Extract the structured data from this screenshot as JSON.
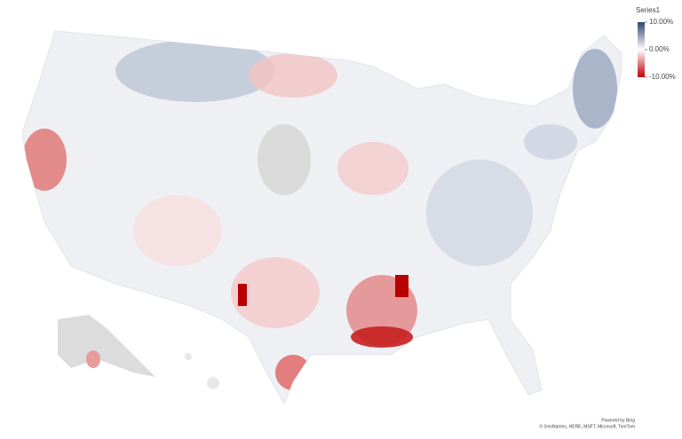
{
  "legend": {
    "title": "Series1",
    "range": [
      -10,
      10
    ],
    "ticks": [
      {
        "value": 10,
        "label": "10.00%"
      },
      {
        "value": 0,
        "label": "0.00%"
      },
      {
        "value": -10,
        "label": "-10.00%"
      }
    ],
    "colors": {
      "max": "#2f4572",
      "mid": "#ffffff",
      "min": "#c00000"
    }
  },
  "attribution": {
    "line1": "Powered by Bing",
    "line2": "© GeoNames, HERE, MSFT, Microsoft, TomTom"
  }
}
